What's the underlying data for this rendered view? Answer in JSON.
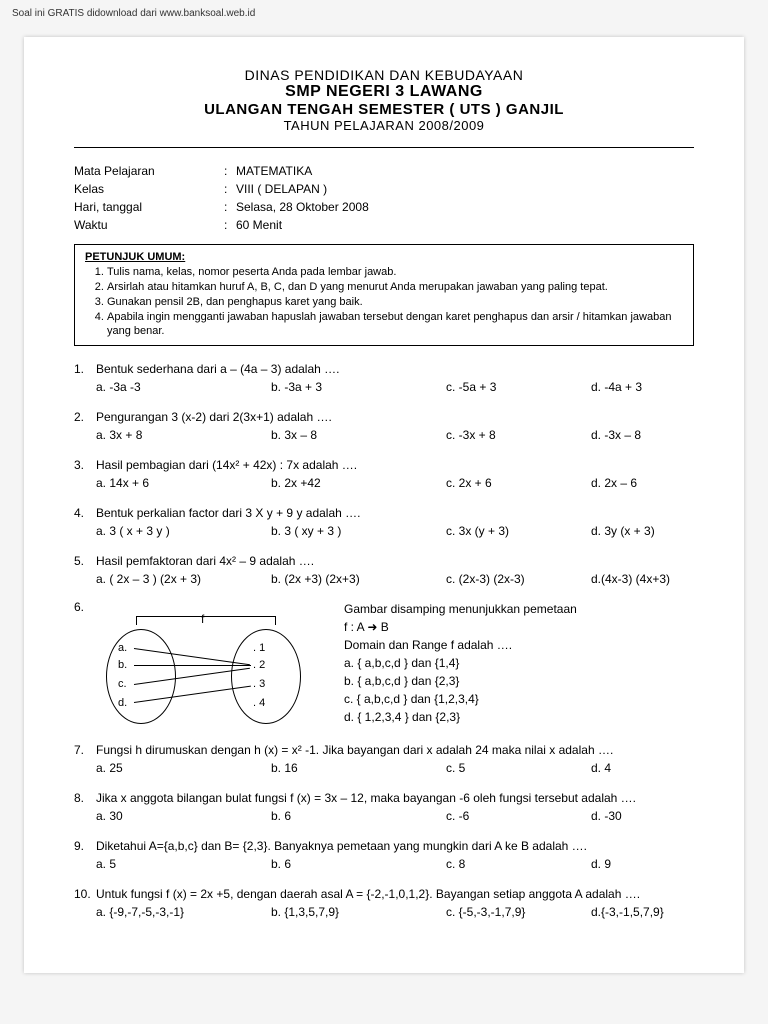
{
  "watermark": "Soal ini GRATIS didownload dari www.banksoal.web.id",
  "header": {
    "line1": "DINAS PENDIDIKAN DAN KEBUDAYAAN",
    "line2": "SMP NEGERI 3 LAWANG",
    "line3": "ULANGAN TENGAH SEMESTER  ( UTS ) GANJIL",
    "line4": "TAHUN PELAJARAN 2008/2009"
  },
  "meta": {
    "subject_label": "Mata Pelajaran",
    "subject_value": "MATEMATIKA",
    "class_label": "Kelas",
    "class_value": "VIII ( DELAPAN )",
    "date_label": "Hari, tanggal",
    "date_value": "Selasa, 28 Oktober 2008",
    "time_label": "Waktu",
    "time_value": "60 Menit"
  },
  "instructions": {
    "title": "PETUNJUK UMUM:",
    "items": [
      "Tulis nama, kelas, nomor peserta Anda pada lembar jawab.",
      "Arsirlah atau hitamkan huruf A, B, C, dan D yang menurut Anda merupakan jawaban yang paling tepat.",
      "Gunakan pensil 2B, dan penghapus karet yang baik.",
      "Apabila ingin mengganti jawaban hapuslah jawaban tersebut dengan karet penghapus dan arsir / hitamkan jawaban yang benar."
    ]
  },
  "questions": [
    {
      "num": "1.",
      "stem": "Bentuk sederhana dari  a – (4a – 3) adalah ….",
      "a": "a. -3a -3",
      "b": "b. -3a + 3",
      "c": "c. -5a + 3",
      "d": "d. -4a + 3"
    },
    {
      "num": "2.",
      "stem": "Pengurangan 3 (x-2)  dari 2(3x+1) adalah ….",
      "a": "a. 3x + 8",
      "b": "b. 3x – 8",
      "c": "c. -3x + 8",
      "d": "d. -3x – 8"
    },
    {
      "num": "3.",
      "stem": "Hasil pembagian dari (14x² + 42x) : 7x adalah ….",
      "a": "a. 14x + 6",
      "b": "b. 2x +42",
      "c": "c. 2x + 6",
      "d": "d. 2x – 6"
    },
    {
      "num": "4.",
      "stem": "Bentuk perkalian factor dari 3 X y + 9 y adalah ….",
      "a": "a. 3 ( x + 3 y )",
      "b": "b. 3 ( xy + 3 )",
      "c": "c. 3x (y + 3)",
      "d": "d. 3y (x + 3)"
    },
    {
      "num": "5.",
      "stem": "Hasil pemfaktoran dari 4x² – 9 adalah ….",
      "a": "a. ( 2x – 3 ) (2x + 3)",
      "b": "b. (2x +3) (2x+3)",
      "c": "c. (2x-3) (2x-3)",
      "d": "d.(4x-3) (4x+3)"
    }
  ],
  "q6": {
    "num": "6.",
    "f_label": "f",
    "left_items": {
      "a": "a.",
      "b": "b.",
      "c": "c.",
      "d": "d."
    },
    "right_items": {
      "r1": ". 1",
      "r2": ". 2",
      "r3": ". 3",
      "r4": ". 4"
    },
    "stem1": "Gambar disamping menunjukkan pemetaan",
    "stem2": "f : A  ➜  B",
    "stem3": "Domain dan Range f adalah ….",
    "a": "a. { a,b,c,d } dan {1,4}",
    "b": "b. { a,b,c,d } dan {2,3}",
    "c": "c. { a,b,c,d } dan {1,2,3,4}",
    "d": "d. { 1,2,3,4  } dan {2,3}"
  },
  "questions2": [
    {
      "num": "7.",
      "stem": "Fungsi h dirumuskan dengan h (x) = x² -1. Jika bayangan dari x adalah 24 maka nilai x adalah ….",
      "a": "a. 25",
      "b": "b. 16",
      "c": "c. 5",
      "d": "d. 4"
    },
    {
      "num": "8.",
      "stem": "Jika x anggota bilangan bulat fungsi f (x) = 3x – 12, maka bayangan -6 oleh fungsi tersebut adalah ….",
      "a": "a. 30",
      "b": "b. 6",
      "c": "c. -6",
      "d": "d. -30"
    },
    {
      "num": "9.",
      "stem": "Diketahui A={a,b,c} dan B= {2,3}. Banyaknya pemetaan yang mungkin dari A ke B adalah ….",
      "a": "a. 5",
      "b": "b. 6",
      "c": "c. 8",
      "d": "d. 9"
    },
    {
      "num": "10.",
      "stem": "Untuk fungsi f (x) = 2x +5, dengan daerah asal A = {-2,-1,0,1,2}. Bayangan setiap anggota A adalah ….",
      "a": "a. {-9,-7,-5,-3,-1}",
      "b": "b. {1,3,5,7,9}",
      "c": "c. {-5,-3,-1,7,9}",
      "d": "d.{-3,-1,5,7,9}"
    }
  ]
}
